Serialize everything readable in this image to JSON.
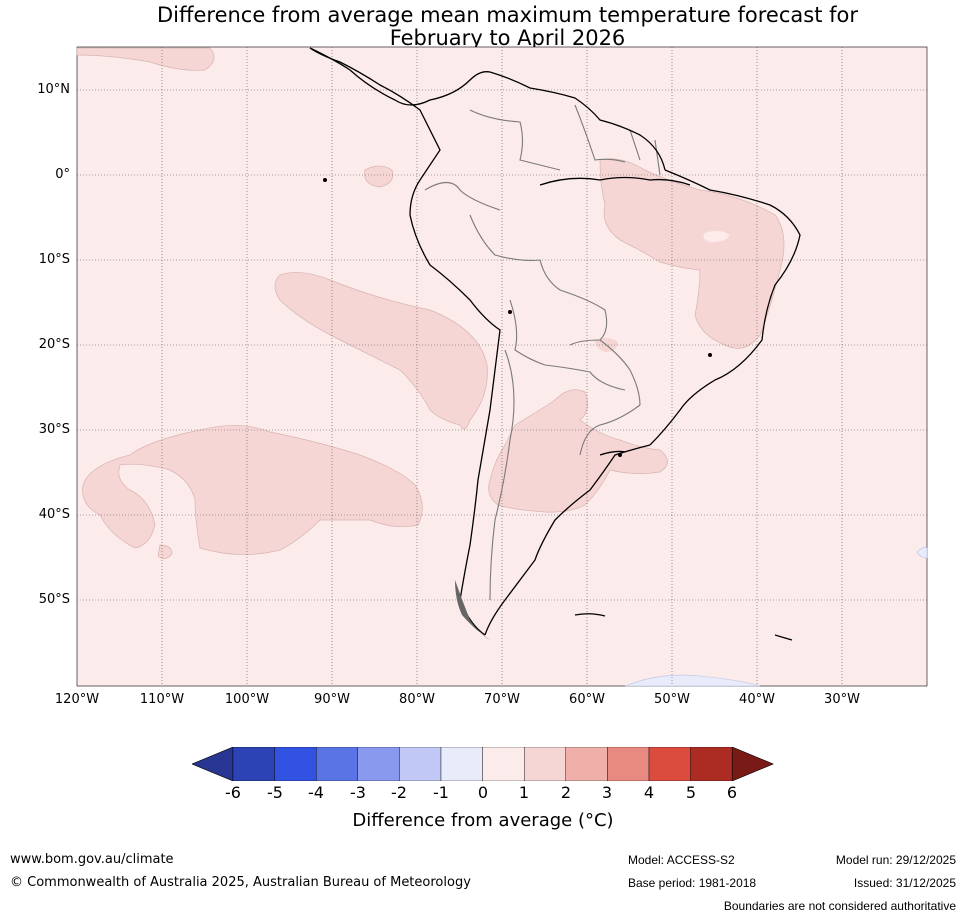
{
  "title": {
    "line1": "Difference from average mean maximum temperature forecast for",
    "line2": "February to April 2026"
  },
  "map": {
    "lat_labels": [
      "10°N",
      "0°",
      "10°S",
      "20°S",
      "30°S",
      "40°S",
      "50°S"
    ],
    "lon_labels": [
      "120°W",
      "110°W",
      "100°W",
      "90°W",
      "80°W",
      "70°W",
      "60°W",
      "50°W",
      "40°W",
      "30°W"
    ],
    "background_color": "#fbebea",
    "anomaly_1_2_color": "#f5d6d4"
  },
  "colorbar": {
    "ticks": [
      "-6",
      "-5",
      "-4",
      "-3",
      "-2",
      "-1",
      "0",
      "1",
      "2",
      "3",
      "4",
      "5",
      "6"
    ],
    "colors": [
      "#283592",
      "#2b43b5",
      "#3253e2",
      "#5a74e6",
      "#8899ee",
      "#c1c8f5",
      "#e8ebfa",
      "#fbebea",
      "#f5d6d4",
      "#efb0aa",
      "#e98a80",
      "#db4b3e",
      "#ac2b23",
      "#7a1a16"
    ],
    "label": "Difference from average (°C)"
  },
  "footer": {
    "url": "www.bom.gov.au/climate",
    "copyright": "© Commonwealth of Australia 2025, Australian Bureau of Meteorology",
    "model": "Model: ACCESS-S2",
    "base_period": "Base period: 1981-2018",
    "model_run": "Model run: 29/12/2025",
    "issued": "Issued: 31/12/2025",
    "disclaimer": "Boundaries are not considered authoritative"
  }
}
